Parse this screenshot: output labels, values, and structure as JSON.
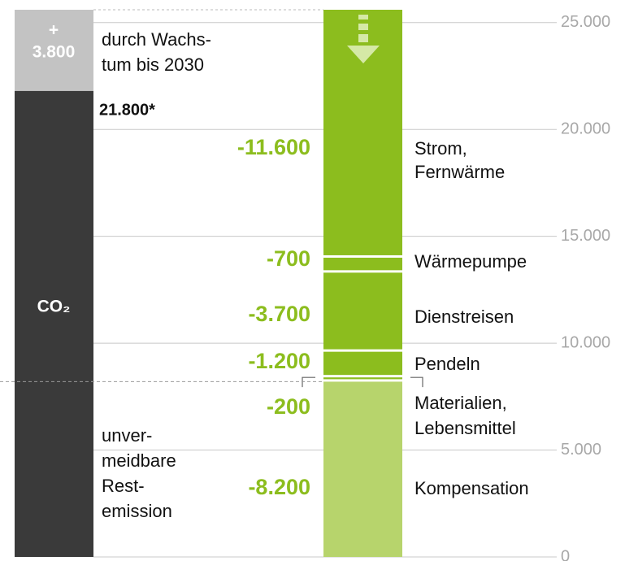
{
  "chart_data": {
    "type": "waterfall",
    "growth": {
      "value": 3800,
      "value_label": [
        "+",
        "3.800"
      ],
      "text": [
        "durch Wachs-",
        "tum bis 2030"
      ],
      "color": "#c3c3c3"
    },
    "base": {
      "value": 21800,
      "value_label": "21.800*",
      "name": "CO₂",
      "color": "#3a3a3a"
    },
    "residual_text": [
      "unver-",
      "meidbare",
      "Rest-",
      "emission"
    ],
    "categories": [
      [
        "Strom,",
        "Fernwärme"
      ],
      [
        "Wärmepumpe"
      ],
      [
        "Dienstreisen"
      ],
      [
        "Pendeln"
      ],
      [
        "Materialien,",
        "Lebensmittel"
      ],
      [
        "Kompensation"
      ]
    ],
    "values": [
      -11600,
      -700,
      -3700,
      -1200,
      -200,
      -8200
    ],
    "value_labels": [
      "-11.600",
      "-700",
      "-3.700",
      "-1.200",
      "-200",
      "-8.200"
    ],
    "colors": [
      "#8cbd1e",
      "#8cbd1e",
      "#8cbd1e",
      "#8cbd1e",
      "#8cbd1e",
      "#b7d46c"
    ],
    "ylim": [
      0,
      25600
    ],
    "yticks": [
      0,
      {
        "value": 5000,
        "label": "5.000"
      },
      {
        "value": 10000,
        "label": "10.000"
      },
      {
        "value": 15000,
        "label": "15.000"
      },
      {
        "value": 20000,
        "label": "20.000"
      },
      {
        "value": 25000,
        "label": "25.000"
      }
    ],
    "grid": true
  }
}
